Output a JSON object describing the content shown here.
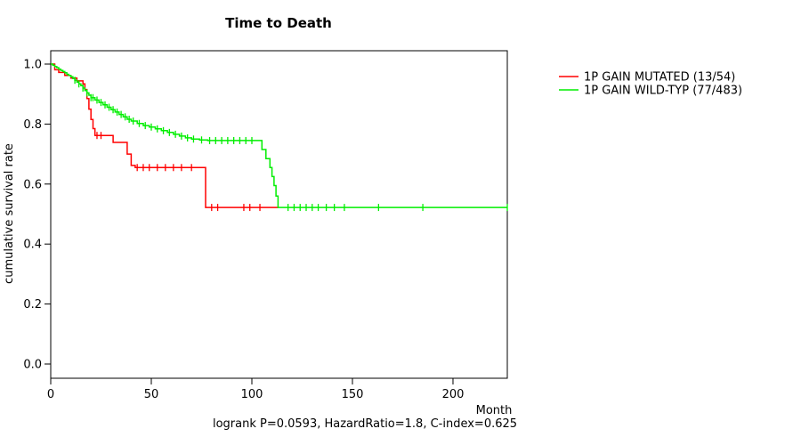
{
  "chart_data": {
    "type": "line",
    "subtype": "kaplan-meier-step-survival",
    "title": "Time to Death",
    "xlabel": "Month",
    "ylabel": "cumulative survival rate",
    "caption": "logrank P=0.0593, HazardRatio=1.8, C-index=0.625",
    "x_ticks": [
      0,
      50,
      100,
      150,
      200
    ],
    "y_ticks": [
      "1.0",
      "0.8",
      "0.6",
      "0.4",
      "0.2",
      "0.0"
    ],
    "x_range": [
      0,
      227
    ],
    "y_range": [
      0,
      1
    ],
    "grid": false,
    "legend_position": "right-outside",
    "series": [
      {
        "name": "1P GAIN MUTATED",
        "label": "1P GAIN MUTATED (13/54)",
        "events": "13/54",
        "color": "#ff0000",
        "steps": [
          [
            0,
            1.0
          ],
          [
            2,
            0.981
          ],
          [
            4,
            0.972
          ],
          [
            7,
            0.962
          ],
          [
            10,
            0.953
          ],
          [
            13,
            0.944
          ],
          [
            16,
            0.934
          ],
          [
            17,
            0.915
          ],
          [
            18,
            0.885
          ],
          [
            19,
            0.85
          ],
          [
            20,
            0.815
          ],
          [
            21,
            0.785
          ],
          [
            22,
            0.762
          ],
          [
            29,
            0.762
          ],
          [
            31,
            0.739
          ],
          [
            36,
            0.739
          ],
          [
            38,
            0.7
          ],
          [
            40,
            0.662
          ],
          [
            42,
            0.655
          ],
          [
            75,
            0.655
          ],
          [
            77,
            0.522
          ],
          [
            113,
            0.522
          ]
        ],
        "censors": [
          23,
          25,
          43,
          46,
          49,
          53,
          57,
          61,
          65,
          70,
          80,
          83,
          96,
          99,
          104
        ]
      },
      {
        "name": "1P GAIN WILD-TYP",
        "label": "1P GAIN WILD-TYP (77/483)",
        "events": "77/483",
        "color": "#00ee00",
        "steps": [
          [
            0,
            1.0
          ],
          [
            1,
            0.996
          ],
          [
            2,
            0.992
          ],
          [
            3,
            0.988
          ],
          [
            4,
            0.983
          ],
          [
            5,
            0.979
          ],
          [
            6,
            0.975
          ],
          [
            7,
            0.971
          ],
          [
            8,
            0.966
          ],
          [
            9,
            0.962
          ],
          [
            10,
            0.958
          ],
          [
            11,
            0.952
          ],
          [
            12,
            0.946
          ],
          [
            13,
            0.94
          ],
          [
            14,
            0.934
          ],
          [
            15,
            0.928
          ],
          [
            16,
            0.92
          ],
          [
            17,
            0.912
          ],
          [
            18,
            0.904
          ],
          [
            19,
            0.896
          ],
          [
            20,
            0.888
          ],
          [
            22,
            0.88
          ],
          [
            24,
            0.872
          ],
          [
            26,
            0.864
          ],
          [
            28,
            0.856
          ],
          [
            30,
            0.848
          ],
          [
            32,
            0.84
          ],
          [
            34,
            0.832
          ],
          [
            36,
            0.824
          ],
          [
            38,
            0.816
          ],
          [
            40,
            0.81
          ],
          [
            43,
            0.802
          ],
          [
            46,
            0.795
          ],
          [
            49,
            0.79
          ],
          [
            52,
            0.784
          ],
          [
            55,
            0.778
          ],
          [
            58,
            0.772
          ],
          [
            61,
            0.766
          ],
          [
            64,
            0.76
          ],
          [
            67,
            0.754
          ],
          [
            70,
            0.75
          ],
          [
            74,
            0.747
          ],
          [
            78,
            0.745
          ],
          [
            103,
            0.745
          ],
          [
            105,
            0.715
          ],
          [
            107,
            0.685
          ],
          [
            109,
            0.655
          ],
          [
            110,
            0.625
          ],
          [
            111,
            0.595
          ],
          [
            112,
            0.56
          ],
          [
            113,
            0.522
          ],
          [
            227,
            0.522
          ]
        ],
        "censors": [
          12,
          14,
          16,
          18,
          20,
          21,
          23,
          25,
          27,
          29,
          31,
          33,
          35,
          37,
          39,
          41,
          44,
          47,
          50,
          53,
          56,
          59,
          62,
          65,
          68,
          71,
          75,
          79,
          82,
          85,
          88,
          91,
          94,
          97,
          100,
          118,
          121,
          124,
          127,
          130,
          133,
          137,
          141,
          146,
          163,
          185,
          227
        ]
      }
    ]
  }
}
